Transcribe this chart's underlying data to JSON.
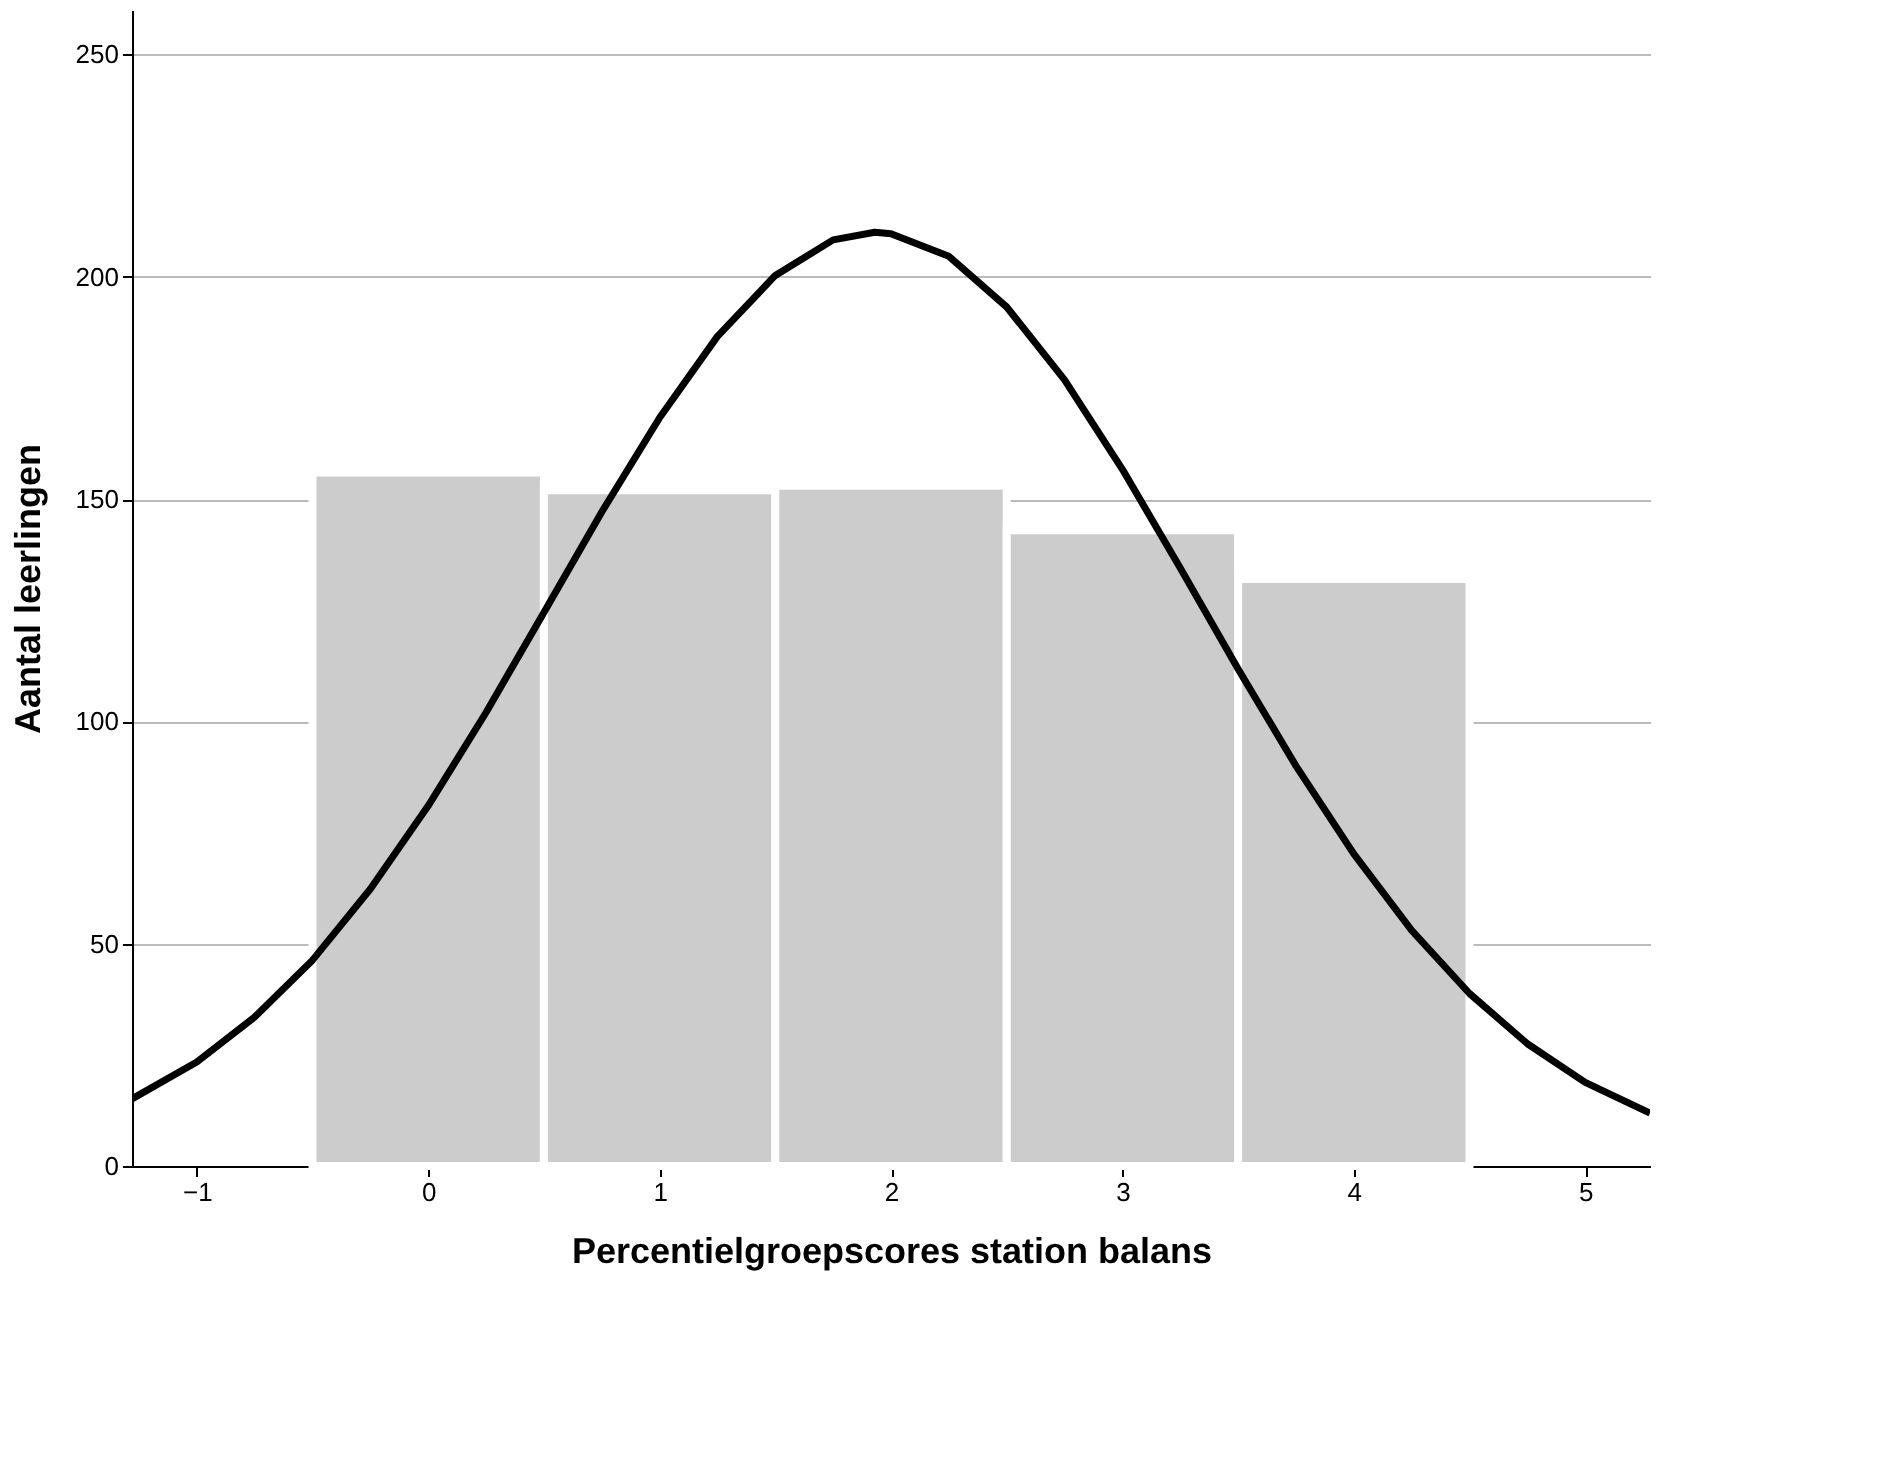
{
  "chart_data": {
    "type": "histogram",
    "xlabel": "Percentielgroepscores station balans",
    "ylabel": "Aantal leerlingen",
    "bins": [
      -0.5,
      0.5,
      1.5,
      2.5,
      3.5,
      4.5
    ],
    "values": [
      156,
      152,
      153,
      143,
      132
    ],
    "color": "#cccccc",
    "series": [
      {
        "type": "line",
        "color": "#000000",
        "line_style": "solid",
        "x": [
          -1.28,
          -1.0,
          -0.75,
          -0.5,
          -0.25,
          0,
          0.25,
          0.5,
          0.75,
          1.0,
          1.25,
          1.5,
          1.75,
          1.93,
          2.0,
          2.25,
          2.5,
          2.75,
          3.0,
          3.25,
          3.5,
          3.75,
          4.0,
          4.25,
          4.5,
          4.75,
          5.0,
          5.28
        ],
        "values": [
          15.1,
          23.4,
          33.5,
          46.3,
          62.3,
          81.0,
          102.0,
          124.5,
          147.1,
          168.3,
          186.6,
          200.3,
          208.3,
          210,
          209.7,
          204.6,
          193.2,
          176.8,
          156.7,
          134.5,
          111.8,
          90.0,
          70.2,
          53.0,
          38.8,
          27.5,
          18.8,
          11.9
        ]
      }
    ],
    "xlim": [
      -1.28,
      5.28
    ],
    "xticks": [
      -1,
      0,
      1,
      2,
      3,
      4,
      5
    ],
    "ylim": [
      0,
      260
    ],
    "yticks": [
      0,
      50,
      100,
      150,
      200,
      250
    ],
    "grid": "y"
  }
}
